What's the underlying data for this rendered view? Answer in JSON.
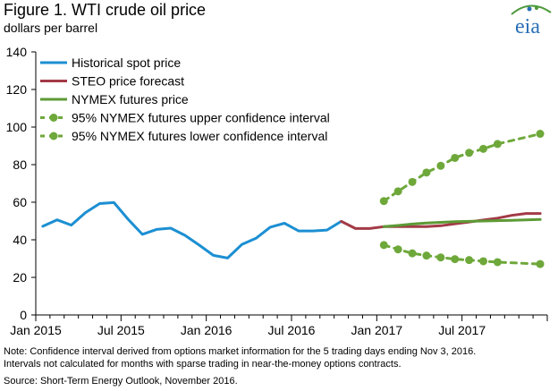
{
  "title": "Figure 1. WTI crude oil price",
  "subtitle": "dollars per barrel",
  "logo_text": "eia",
  "note_line1": "Note: Confidence interval derived from options market information for the 5 trading days ending Nov 3, 2016.",
  "note_line2": "Intervals not calculated for months with sparse trading in near-the-money options contracts.",
  "source": "Source: Short-Term Energy Outlook, November 2016.",
  "colors": {
    "historical": "#1c8fd2",
    "steo": "#a33a47",
    "futures": "#5d9a35",
    "ci": "#6ea83a",
    "axis": "#000000",
    "logo_green": "#4c9a3a",
    "logo_blue": "#2a6fb6"
  },
  "chart_data": {
    "type": "line",
    "ylim": [
      0,
      140
    ],
    "yticks": [
      0,
      20,
      40,
      60,
      80,
      100,
      120,
      140
    ],
    "x_range": [
      "2015-01",
      "2017-12"
    ],
    "xticks": [
      {
        "x": "2015-01",
        "label": "Jan 2015"
      },
      {
        "x": "2015-07",
        "label": "Jul 2015"
      },
      {
        "x": "2016-01",
        "label": "Jan 2016"
      },
      {
        "x": "2016-07",
        "label": "Jul 2016"
      },
      {
        "x": "2017-01",
        "label": "Jan 2017"
      },
      {
        "x": "2017-07",
        "label": "Jul 2017"
      }
    ],
    "grid": false,
    "legend_placement": "top-left",
    "series": [
      {
        "name": "Historical spot price",
        "style": "solid",
        "color_key": "historical",
        "points": [
          [
            "2015-01",
            47.2
          ],
          [
            "2015-02",
            50.6
          ],
          [
            "2015-03",
            47.8
          ],
          [
            "2015-04",
            54.5
          ],
          [
            "2015-05",
            59.3
          ],
          [
            "2015-06",
            59.8
          ],
          [
            "2015-07",
            50.9
          ],
          [
            "2015-08",
            42.9
          ],
          [
            "2015-09",
            45.5
          ],
          [
            "2015-10",
            46.2
          ],
          [
            "2015-11",
            42.4
          ],
          [
            "2015-12",
            37.2
          ],
          [
            "2016-01",
            31.7
          ],
          [
            "2016-02",
            30.3
          ],
          [
            "2016-03",
            37.5
          ],
          [
            "2016-04",
            40.8
          ],
          [
            "2016-05",
            46.7
          ],
          [
            "2016-06",
            48.8
          ],
          [
            "2016-07",
            44.7
          ],
          [
            "2016-08",
            44.7
          ],
          [
            "2016-09",
            45.2
          ],
          [
            "2016-10",
            49.8
          ]
        ]
      },
      {
        "name": "STEO price forecast",
        "style": "solid",
        "color_key": "steo",
        "points": [
          [
            "2016-10",
            49.8
          ],
          [
            "2016-11",
            46.0
          ],
          [
            "2016-12",
            46.0
          ],
          [
            "2017-01",
            47.0
          ],
          [
            "2017-02",
            47.0
          ],
          [
            "2017-03",
            47.0
          ],
          [
            "2017-04",
            47.0
          ],
          [
            "2017-05",
            47.5
          ],
          [
            "2017-06",
            48.5
          ],
          [
            "2017-07",
            49.5
          ],
          [
            "2017-08",
            50.5
          ],
          [
            "2017-09",
            51.5
          ],
          [
            "2017-10",
            53.0
          ],
          [
            "2017-11",
            54.0
          ],
          [
            "2017-12",
            54.0
          ]
        ]
      },
      {
        "name": "NYMEX futures price",
        "style": "solid",
        "color_key": "futures",
        "points": [
          [
            "2017-01",
            47.0
          ],
          [
            "2017-02",
            47.6
          ],
          [
            "2017-03",
            48.4
          ],
          [
            "2017-04",
            48.9
          ],
          [
            "2017-05",
            49.3
          ],
          [
            "2017-06",
            49.6
          ],
          [
            "2017-07",
            49.8
          ],
          [
            "2017-08",
            50.0
          ],
          [
            "2017-09",
            50.2
          ],
          [
            "2017-10",
            50.4
          ],
          [
            "2017-11",
            50.6
          ],
          [
            "2017-12",
            50.8
          ]
        ]
      },
      {
        "name": "95% NYMEX futures upper confidence interval",
        "style": "dashed-dots",
        "color_key": "ci",
        "points": [
          [
            "2017-01",
            60.6
          ],
          [
            "2017-02",
            65.8
          ],
          [
            "2017-03",
            70.8
          ],
          [
            "2017-04",
            75.8
          ],
          [
            "2017-05",
            79.4
          ],
          [
            "2017-06",
            83.6
          ],
          [
            "2017-07",
            86.3
          ],
          [
            "2017-08",
            88.4
          ],
          [
            "2017-09",
            91.0
          ],
          [
            "2017-12",
            96.4
          ]
        ]
      },
      {
        "name": "95% NYMEX futures lower confidence interval",
        "style": "dashed-dots",
        "color_key": "ci",
        "points": [
          [
            "2017-01",
            37.2
          ],
          [
            "2017-02",
            34.9
          ],
          [
            "2017-03",
            32.8
          ],
          [
            "2017-04",
            31.6
          ],
          [
            "2017-05",
            30.6
          ],
          [
            "2017-06",
            29.7
          ],
          [
            "2017-07",
            29.2
          ],
          [
            "2017-08",
            28.6
          ],
          [
            "2017-09",
            28.1
          ],
          [
            "2017-12",
            27.1
          ]
        ]
      }
    ]
  }
}
